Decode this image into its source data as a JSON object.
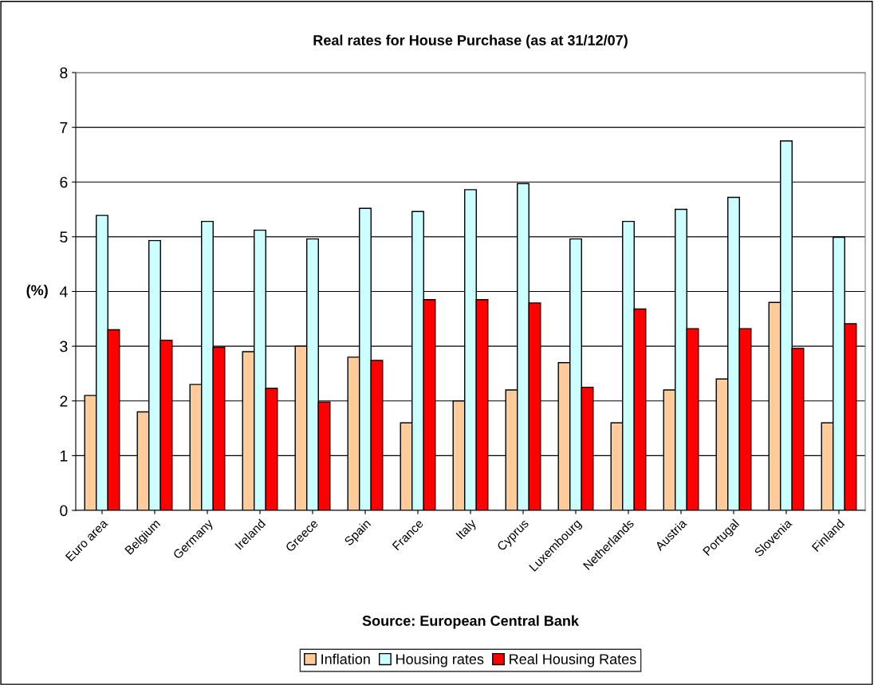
{
  "chart_data": {
    "type": "bar",
    "title": "Real rates for House Purchase (as at 31/12/07)",
    "ylabel": "(%)",
    "categories": [
      "Euro area",
      "Belgium",
      "Germany",
      "Ireland",
      "Greece",
      "Spain",
      "France",
      "Italy",
      "Cyprus",
      "Luxembourg",
      "Netherlands",
      "Austria",
      "Portugal",
      "Slovenia",
      "Finland"
    ],
    "series": [
      {
        "name": "Inflation",
        "color": "#ffcc99",
        "values": [
          2.1,
          1.8,
          2.3,
          2.9,
          3.0,
          2.8,
          1.6,
          2.0,
          2.2,
          2.7,
          1.6,
          2.2,
          2.4,
          3.8,
          1.6
        ]
      },
      {
        "name": "Housing rates",
        "color": "#ccffff",
        "values": [
          5.39,
          4.93,
          5.28,
          5.12,
          4.96,
          5.52,
          5.46,
          5.86,
          5.97,
          4.96,
          5.28,
          5.5,
          5.72,
          6.75,
          4.99
        ]
      },
      {
        "name": "Real Housing Rates",
        "color": "#ff0000",
        "values": [
          3.3,
          3.11,
          2.98,
          2.23,
          1.98,
          2.74,
          3.85,
          3.85,
          3.79,
          2.25,
          3.68,
          3.32,
          3.32,
          2.96,
          3.41
        ]
      }
    ],
    "ylim": [
      0,
      8
    ],
    "yticks": [
      0,
      1,
      2,
      3,
      4,
      5,
      6,
      7,
      8
    ],
    "grid": "y",
    "legend": "bottom",
    "annotations": [
      "Source: European Central Bank"
    ]
  }
}
